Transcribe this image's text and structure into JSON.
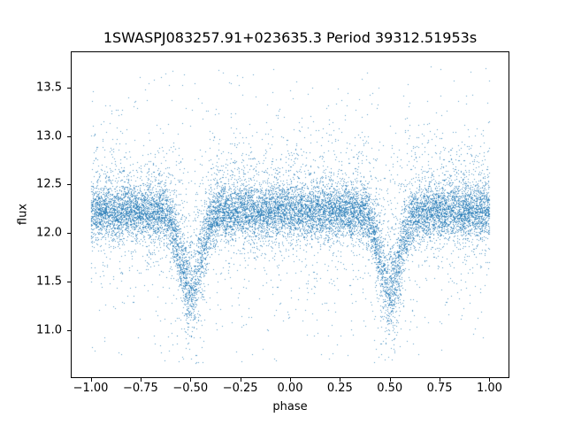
{
  "figure": {
    "background": "#ffffff"
  },
  "chart_data": {
    "type": "scatter",
    "title": "1SWASPJ083257.91+023635.3 Period 39312.51953s",
    "xlabel": "phase",
    "ylabel": "flux",
    "xlim": [
      -1.1,
      1.1
    ],
    "ylim": [
      10.51,
      13.87
    ],
    "xticks": [
      -1.0,
      -0.75,
      -0.5,
      -0.25,
      0.0,
      0.25,
      0.5,
      0.75,
      1.0
    ],
    "xtick_labels": [
      "−1.00",
      "−0.75",
      "−0.50",
      "−0.25",
      "0.00",
      "0.25",
      "0.50",
      "0.75",
      "1.00"
    ],
    "yticks": [
      11.0,
      11.5,
      12.0,
      12.5,
      13.0,
      13.5
    ],
    "ytick_labels": [
      "11.0",
      "11.5",
      "12.0",
      "12.5",
      "13.0",
      "13.5"
    ],
    "grid": false,
    "legend": null,
    "marker_color": "#1f77b4",
    "marker_alpha": 0.75,
    "marker_size_px": 1,
    "series_model": {
      "description": "phase-folded eclipsing-binary light curve plotted over two cycles; dense noisy band at baseline flux with V-shaped eclipse dips at phase -0.5 and +0.5 and heavy-tailed outlier scatter",
      "n_points": 16000,
      "seed": 1937,
      "phase_range": [
        -1.0,
        1.0
      ],
      "baseline_flux": 12.22,
      "eclipse_centers": [
        -0.5,
        0.5
      ],
      "eclipse_depth": 0.82,
      "eclipse_sigma_phase": 0.05,
      "eclipse_noise_boost": 0.8,
      "noise_mixture": [
        {
          "fraction": 0.78,
          "sigma": 0.13
        },
        {
          "fraction": 0.15,
          "sigma": 0.32
        },
        {
          "fraction": 0.055,
          "sigma": 0.7
        },
        {
          "fraction": 0.015,
          "uniform_halfwidth": 1.6
        }
      ],
      "upward_skew": {
        "fraction": 0.1,
        "sigma": 0.3
      },
      "flux_clip": [
        10.66,
        13.72
      ]
    }
  }
}
